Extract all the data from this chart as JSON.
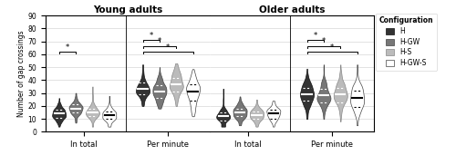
{
  "title_left": "Young adults",
  "title_right": "Older adults",
  "ylabel": "Number of gap crossings",
  "ylim": [
    0,
    90
  ],
  "yticks": [
    0,
    10,
    20,
    30,
    40,
    50,
    60,
    70,
    80,
    90
  ],
  "colors": {
    "H": "#333333",
    "H-GW": "#777777",
    "H-S": "#bbbbbb",
    "H-GW-S": "#ffffff"
  },
  "edgecolors": {
    "H": "#111111",
    "H-GW": "#444444",
    "H-S": "#888888",
    "H-GW-S": "#444444"
  },
  "legend_labels": [
    "H",
    "H-GW",
    "H-S",
    "H-GW-S"
  ],
  "groups": {
    "young_in_total": {
      "H": {
        "median": 14,
        "q1": 11,
        "q3": 17,
        "min": 4,
        "max": 28
      },
      "H-GW": {
        "median": 18,
        "q1": 15,
        "q3": 21,
        "min": 7,
        "max": 30
      },
      "H-S": {
        "median": 15,
        "q1": 12,
        "q3": 18,
        "min": 4,
        "max": 35
      },
      "H-GW-S": {
        "median": 13,
        "q1": 10,
        "q3": 16,
        "min": 4,
        "max": 31
      }
    },
    "young_per_minute": {
      "H": {
        "median": 33,
        "q1": 29,
        "q3": 38,
        "min": 20,
        "max": 52
      },
      "H-GW": {
        "median": 31,
        "q1": 26,
        "q3": 36,
        "min": 18,
        "max": 50
      },
      "H-S": {
        "median": 37,
        "q1": 31,
        "q3": 42,
        "min": 20,
        "max": 53
      },
      "H-GW-S": {
        "median": 31,
        "q1": 24,
        "q3": 37,
        "min": 12,
        "max": 50
      }
    },
    "older_in_total": {
      "H": {
        "median": 12,
        "q1": 9,
        "q3": 15,
        "min": 4,
        "max": 38
      },
      "H-GW": {
        "median": 15,
        "q1": 12,
        "q3": 18,
        "min": 5,
        "max": 30
      },
      "H-S": {
        "median": 13,
        "q1": 10,
        "q3": 16,
        "min": 4,
        "max": 25
      },
      "H-GW-S": {
        "median": 14,
        "q1": 10,
        "q3": 17,
        "min": 4,
        "max": 24
      }
    },
    "older_per_minute": {
      "H": {
        "median": 29,
        "q1": 24,
        "q3": 34,
        "min": 10,
        "max": 52
      },
      "H-GW": {
        "median": 28,
        "q1": 23,
        "q3": 33,
        "min": 10,
        "max": 52
      },
      "H-S": {
        "median": 29,
        "q1": 23,
        "q3": 34,
        "min": 8,
        "max": 52
      },
      "H-GW-S": {
        "median": 26,
        "q1": 19,
        "q3": 32,
        "min": 5,
        "max": 52
      }
    }
  },
  "sig_young_total": [
    [
      "H",
      "H-GW"
    ]
  ],
  "sig_young_per_min": [
    [
      "H",
      "H-GW-S"
    ],
    [
      "H",
      "H-S"
    ],
    [
      "H",
      "H-GW"
    ]
  ],
  "sig_older_total": [],
  "sig_older_per_min": [
    [
      "H",
      "H-GW-S"
    ],
    [
      "H",
      "H-S"
    ],
    [
      "H",
      "H-GW"
    ]
  ]
}
